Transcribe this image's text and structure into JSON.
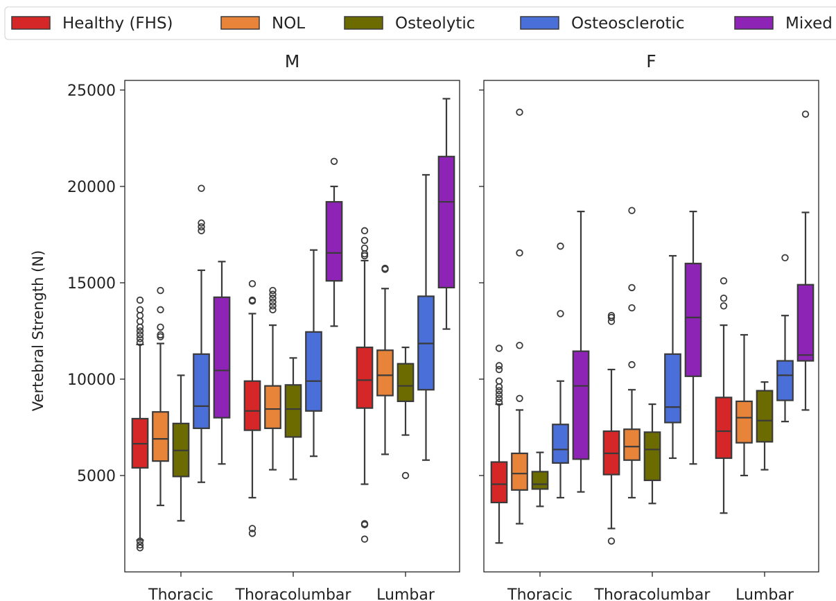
{
  "chart_data": {
    "type": "box",
    "ylabel": "Vertebral Strength (N)",
    "ylim": [
      0,
      25500
    ],
    "yticks": [
      5000,
      10000,
      15000,
      20000,
      25000
    ],
    "categories": [
      "Thoracic",
      "Thoracolumbar",
      "Lumbar"
    ],
    "legend_position": "top",
    "series": [
      {
        "name": "Healthy (FHS)",
        "color": "#d62728"
      },
      {
        "name": "NOL",
        "color": "#e8843a"
      },
      {
        "name": "Osteolytic",
        "color": "#6b6b00"
      },
      {
        "name": "Osteosclerotic",
        "color": "#4a6fd8"
      },
      {
        "name": "Mixed",
        "color": "#8e24b5"
      }
    ],
    "panels": [
      {
        "title": "M",
        "groups": [
          {
            "category": "Thoracic",
            "boxes": [
              {
                "q1": 5400,
                "median": 6650,
                "q3": 7950,
                "whislo": 1650,
                "whishi": 11800,
                "fliers": [
                  1250,
                  1400,
                  1600,
                  11900,
                  12100,
                  12300,
                  12500,
                  12700,
                  13000,
                  13300,
                  13600,
                  14100
                ]
              },
              {
                "q1": 5750,
                "median": 6900,
                "q3": 8300,
                "whislo": 3450,
                "whishi": 11850,
                "fliers": [
                  12200,
                  12300,
                  12700,
                  13600,
                  14600
                ]
              },
              {
                "q1": 4950,
                "median": 6300,
                "q3": 7700,
                "whislo": 2650,
                "whishi": 10200,
                "fliers": []
              },
              {
                "q1": 7450,
                "median": 8600,
                "q3": 11300,
                "whislo": 4650,
                "whishi": 15650,
                "fliers": [
                  17700,
                  17900,
                  18100,
                  19900
                ]
              },
              {
                "q1": 8000,
                "median": 10450,
                "q3": 14250,
                "whislo": 5600,
                "whishi": 16100,
                "fliers": []
              }
            ]
          },
          {
            "category": "Thoracolumbar",
            "boxes": [
              {
                "q1": 7350,
                "median": 8350,
                "q3": 9900,
                "whislo": 3850,
                "whishi": 13400,
                "fliers": [
                  2000,
                  2250,
                  14050,
                  14100,
                  14950
                ]
              },
              {
                "q1": 7450,
                "median": 8450,
                "q3": 9650,
                "whislo": 5300,
                "whishi": 12800,
                "fliers": [
                  13600,
                  13800,
                  14000,
                  14200,
                  14400,
                  14600
                ]
              },
              {
                "q1": 7000,
                "median": 8450,
                "q3": 9700,
                "whislo": 4800,
                "whishi": 11100,
                "fliers": []
              },
              {
                "q1": 8350,
                "median": 9900,
                "q3": 12450,
                "whislo": 6000,
                "whishi": 16700,
                "fliers": []
              },
              {
                "q1": 15100,
                "median": 16550,
                "q3": 19200,
                "whislo": 12750,
                "whishi": 20000,
                "fliers": [
                  21300
                ]
              }
            ]
          },
          {
            "category": "Lumbar",
            "boxes": [
              {
                "q1": 8500,
                "median": 9950,
                "q3": 11650,
                "whislo": 4550,
                "whishi": 16150,
                "fliers": [
                  1700,
                  2450,
                  2500,
                  16400,
                  16500,
                  16800,
                  17200,
                  17700
                ]
              },
              {
                "q1": 9150,
                "median": 10200,
                "q3": 11500,
                "whislo": 6100,
                "whishi": 14700,
                "fliers": [
                  15700,
                  15750
                ]
              },
              {
                "q1": 8850,
                "median": 9650,
                "q3": 10800,
                "whislo": 7100,
                "whishi": 11650,
                "fliers": [
                  5000
                ]
              },
              {
                "q1": 9450,
                "median": 11850,
                "q3": 14300,
                "whislo": 5800,
                "whishi": 20600,
                "fliers": []
              },
              {
                "q1": 14750,
                "median": 19200,
                "q3": 21550,
                "whislo": 12600,
                "whishi": 24550,
                "fliers": []
              }
            ]
          }
        ]
      },
      {
        "title": "F",
        "groups": [
          {
            "category": "Thoracic",
            "boxes": [
              {
                "q1": 3600,
                "median": 4550,
                "q3": 5700,
                "whislo": 1500,
                "whishi": 8700,
                "fliers": [
                  8800,
                  9000,
                  9200,
                  9400,
                  9600,
                  9900,
                  10500,
                  10700,
                  11600
                ]
              },
              {
                "q1": 4250,
                "median": 5100,
                "q3": 6150,
                "whislo": 2500,
                "whishi": 8400,
                "fliers": [
                  9000,
                  11750,
                  16550,
                  23850
                ]
              },
              {
                "q1": 4300,
                "median": 4550,
                "q3": 5200,
                "whislo": 3400,
                "whishi": 6200,
                "fliers": []
              },
              {
                "q1": 5650,
                "median": 6350,
                "q3": 7650,
                "whislo": 3850,
                "whishi": 9900,
                "fliers": [
                  13400,
                  16900
                ]
              },
              {
                "q1": 5850,
                "median": 9650,
                "q3": 11450,
                "whislo": 4150,
                "whishi": 18700,
                "fliers": []
              }
            ]
          },
          {
            "category": "Thoracolumbar",
            "boxes": [
              {
                "q1": 5050,
                "median": 6150,
                "q3": 7300,
                "whislo": 2250,
                "whishi": 10500,
                "fliers": [
                  1600,
                  13000,
                  13200,
                  13300
                ]
              },
              {
                "q1": 5800,
                "median": 6500,
                "q3": 7400,
                "whislo": 3850,
                "whishi": 9450,
                "fliers": [
                  10750,
                  13700,
                  14750,
                  18750
                ]
              },
              {
                "q1": 4750,
                "median": 6350,
                "q3": 7250,
                "whislo": 3550,
                "whishi": 8700,
                "fliers": []
              },
              {
                "q1": 7750,
                "median": 8550,
                "q3": 11300,
                "whislo": 5900,
                "whishi": 16400,
                "fliers": []
              },
              {
                "q1": 10150,
                "median": 13200,
                "q3": 16000,
                "whislo": 5600,
                "whishi": 18700,
                "fliers": []
              }
            ]
          },
          {
            "category": "Lumbar",
            "boxes": [
              {
                "q1": 5900,
                "median": 7300,
                "q3": 9050,
                "whislo": 3050,
                "whishi": 12800,
                "fliers": [
                  13800,
                  14200,
                  15100
                ]
              },
              {
                "q1": 6700,
                "median": 8000,
                "q3": 8850,
                "whislo": 5000,
                "whishi": 12300,
                "fliers": []
              },
              {
                "q1": 6750,
                "median": 7850,
                "q3": 9400,
                "whislo": 5300,
                "whishi": 9850,
                "fliers": []
              },
              {
                "q1": 8900,
                "median": 10200,
                "q3": 10950,
                "whislo": 7800,
                "whishi": 13300,
                "fliers": [
                  16300
                ]
              },
              {
                "q1": 10950,
                "median": 11250,
                "q3": 14900,
                "whislo": 8400,
                "whishi": 18650,
                "fliers": [
                  23750
                ]
              }
            ]
          }
        ]
      }
    ]
  }
}
